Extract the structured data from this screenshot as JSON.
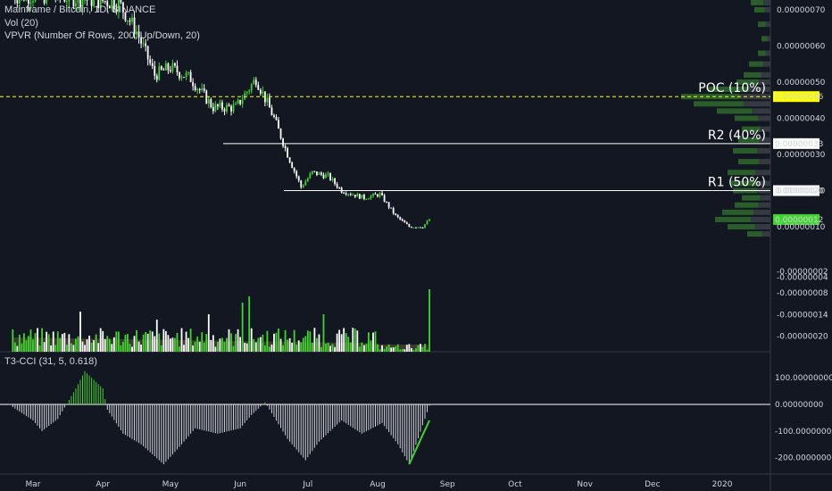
{
  "legend": {
    "title": "Mainframe / Bitcoin, 1D, BINANCE",
    "vol": "Vol (20)",
    "vpvr": "VPVR (Number Of Rows, 200, Up/Down, 20)",
    "cci": "T3-CCI (31, 5, 0.618)"
  },
  "colors": {
    "up": "#3fd42e",
    "down": "#ffffff",
    "background": "#131722",
    "poc": "#ffff00",
    "grid": "#2a2e39"
  },
  "chart_data": [
    {
      "type": "candlestick",
      "title": "Mainframe / Bitcoin, 1D, BINANCE",
      "x_ticks": [
        "Mar",
        "Apr",
        "May",
        "Jun",
        "Jul",
        "Aug",
        "Sep",
        "Oct",
        "Nov",
        "Dec",
        "2020"
      ],
      "y_ticks": [
        "0.00000070",
        "0.00000060",
        "0.00000050",
        "0.00000040",
        "0.00000030",
        "0.00000020",
        "0.00000010",
        "-0.00000004"
      ],
      "ylim": [
        -4e-08,
        7.5e-07
      ],
      "levels": [
        {
          "label": "POC (10%)",
          "value": 4.6e-07,
          "tag": "0.00000046",
          "style": "dashed"
        },
        {
          "label": "R2 (40%)",
          "value": 3.3e-07,
          "tag": "0.00000033",
          "style": "solid"
        },
        {
          "label": "R1 (50%)",
          "value": 2e-07,
          "tag": "0.00000020",
          "style": "solid"
        }
      ],
      "last_price": {
        "value": 1.2e-07,
        "tag": "0.00000012"
      },
      "close_trend": [
        {
          "date": "Feb 20",
          "close": 7.4e-07
        },
        {
          "date": "Mar 10",
          "close": 7.4e-07
        },
        {
          "date": "Apr 08",
          "close": 7.2e-07
        },
        {
          "date": "Apr 16",
          "close": 6.4e-07
        },
        {
          "date": "Apr 24",
          "close": 5.2e-07
        },
        {
          "date": "May 01",
          "close": 5.4e-07
        },
        {
          "date": "May 10",
          "close": 5.1e-07
        },
        {
          "date": "May 20",
          "close": 4.3e-07
        },
        {
          "date": "May 30",
          "close": 4.3e-07
        },
        {
          "date": "Jun 08",
          "close": 5.1e-07
        },
        {
          "date": "Jun 16",
          "close": 4e-07
        },
        {
          "date": "Jun 22",
          "close": 3e-07
        },
        {
          "date": "Jun 28",
          "close": 2.1e-07
        },
        {
          "date": "Jul 03",
          "close": 2.5e-07
        },
        {
          "date": "Jul 10",
          "close": 2.4e-07
        },
        {
          "date": "Jul 16",
          "close": 2e-07
        },
        {
          "date": "Jul 26",
          "close": 1.8e-07
        },
        {
          "date": "Aug 02",
          "close": 1.9e-07
        },
        {
          "date": "Aug 09",
          "close": 1.3e-07
        },
        {
          "date": "Aug 15",
          "close": 1e-07
        },
        {
          "date": "Aug 21",
          "close": 1e-07
        },
        {
          "date": "Aug 24",
          "close": 1.2e-07
        }
      ]
    },
    {
      "type": "bar",
      "title": "Vol (20)",
      "y_ticks": [
        "-0.00000002",
        "-0.00000008",
        "-0.00000014",
        "-0.00000020"
      ],
      "volume_spikes": [
        {
          "date": "Mar 22",
          "value": 0.45
        },
        {
          "date": "Apr 25",
          "value": 0.36
        },
        {
          "date": "May 18",
          "value": 0.42
        },
        {
          "date": "Jun 02",
          "value": 0.55
        },
        {
          "date": "Jun 05",
          "value": 0.62
        },
        {
          "date": "Jul 08",
          "value": 0.42
        },
        {
          "date": "Aug 24",
          "value": 0.7
        }
      ]
    },
    {
      "type": "bar",
      "title": "T3-CCI (31, 5, 0.618)",
      "y_ticks": [
        "100.00000000",
        "0.00000000",
        "-100.00000000",
        "-200.00000000"
      ],
      "ylim": [
        -230,
        140
      ],
      "cci": [
        {
          "date": "Feb 20",
          "value": -10
        },
        {
          "date": "Mar 01",
          "value": -60
        },
        {
          "date": "Mar 05",
          "value": -100
        },
        {
          "date": "Mar 12",
          "value": -55
        },
        {
          "date": "Mar 20",
          "value": 60
        },
        {
          "date": "Mar 24",
          "value": 125
        },
        {
          "date": "Apr 01",
          "value": 60
        },
        {
          "date": "Apr 03",
          "value": -20
        },
        {
          "date": "Apr 10",
          "value": -110
        },
        {
          "date": "Apr 18",
          "value": -150
        },
        {
          "date": "Apr 28",
          "value": -225
        },
        {
          "date": "May 05",
          "value": -160
        },
        {
          "date": "May 12",
          "value": -90
        },
        {
          "date": "May 22",
          "value": -110
        },
        {
          "date": "Jun 01",
          "value": -90
        },
        {
          "date": "Jun 06",
          "value": -40
        },
        {
          "date": "Jun 12",
          "value": 8
        },
        {
          "date": "Jun 22",
          "value": -130
        },
        {
          "date": "Jun 30",
          "value": -210
        },
        {
          "date": "Jul 06",
          "value": -140
        },
        {
          "date": "Jul 16",
          "value": -60
        },
        {
          "date": "Jul 25",
          "value": -110
        },
        {
          "date": "Aug 03",
          "value": -70
        },
        {
          "date": "Aug 10",
          "value": -150
        },
        {
          "date": "Aug 15",
          "value": -225
        },
        {
          "date": "Aug 24",
          "value": -5
        }
      ],
      "trendline": [
        {
          "date": "Aug 15",
          "value": -225
        },
        {
          "date": "Aug 24",
          "value": -60
        }
      ]
    }
  ]
}
